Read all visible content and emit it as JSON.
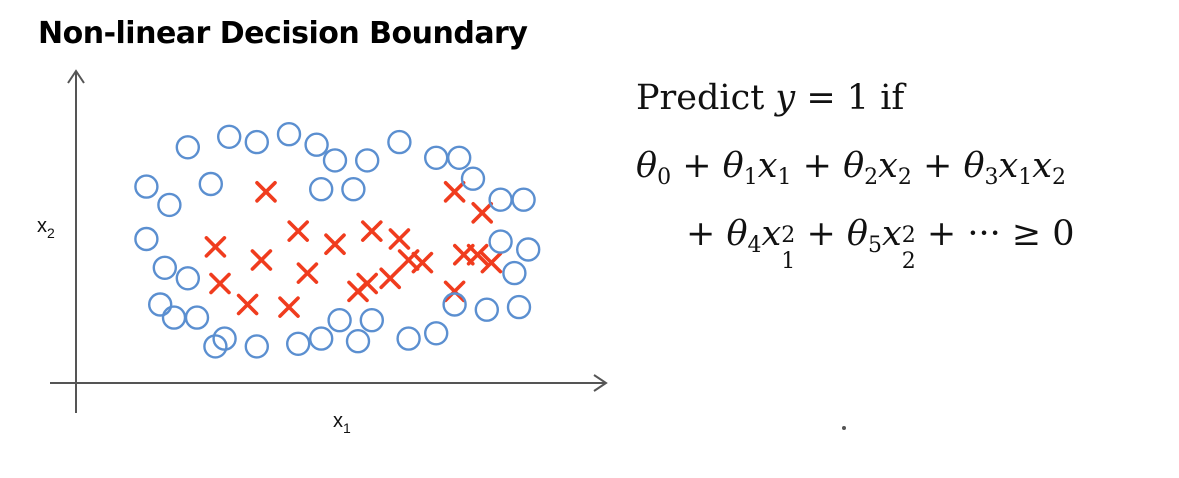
{
  "slide": {
    "title": "Non-linear Decision Boundary"
  },
  "plot": {
    "x_axis_label": "x",
    "x_axis_subscript": "1",
    "y_axis_label": "x",
    "y_axis_subscript": "2",
    "positive_marker_color": "#f03c1e",
    "negative_marker_color": "#5b8fd0",
    "positive_marker": "x-cross",
    "negative_marker": "circle"
  },
  "chart_data": {
    "type": "scatter",
    "xlabel": "x1",
    "ylabel": "x2",
    "grid": false,
    "legend": "none",
    "xlim": [
      0,
      100
    ],
    "ylim": [
      0,
      100
    ],
    "series": [
      {
        "marker": "x",
        "color": "#f03c1e",
        "points": [
          [
            35,
            68
          ],
          [
            24,
            47
          ],
          [
            34,
            42
          ],
          [
            42,
            53
          ],
          [
            50,
            48
          ],
          [
            58,
            53
          ],
          [
            66,
            42
          ],
          [
            62,
            35
          ],
          [
            76,
            68
          ],
          [
            82,
            60
          ],
          [
            78,
            44
          ],
          [
            84,
            41
          ],
          [
            25,
            33
          ],
          [
            44,
            37
          ],
          [
            31,
            25
          ],
          [
            40,
            24
          ],
          [
            57,
            33
          ],
          [
            69,
            41
          ],
          [
            76,
            30
          ],
          [
            81,
            44
          ],
          [
            64,
            50
          ],
          [
            55,
            30
          ]
        ]
      },
      {
        "marker": "o",
        "color": "#5b8fd0",
        "points": [
          [
            18,
            85
          ],
          [
            27,
            89
          ],
          [
            33,
            87
          ],
          [
            40,
            90
          ],
          [
            46,
            86
          ],
          [
            50,
            80
          ],
          [
            57,
            80
          ],
          [
            64,
            87
          ],
          [
            72,
            81
          ],
          [
            77,
            81
          ],
          [
            9,
            70
          ],
          [
            14,
            63
          ],
          [
            23,
            71
          ],
          [
            47,
            69
          ],
          [
            54,
            69
          ],
          [
            80,
            73
          ],
          [
            86,
            65
          ],
          [
            91,
            65
          ],
          [
            9,
            50
          ],
          [
            13,
            39
          ],
          [
            18,
            35
          ],
          [
            86,
            49
          ],
          [
            92,
            46
          ],
          [
            89,
            37
          ],
          [
            12,
            25
          ],
          [
            15,
            20
          ],
          [
            20,
            20
          ],
          [
            76,
            25
          ],
          [
            83,
            23
          ],
          [
            90,
            24
          ],
          [
            24,
            9
          ],
          [
            26,
            12
          ],
          [
            33,
            9
          ],
          [
            42,
            10
          ],
          [
            47,
            12
          ],
          [
            51,
            19
          ],
          [
            58,
            19
          ],
          [
            55,
            11
          ],
          [
            66,
            12
          ],
          [
            72,
            14
          ]
        ]
      }
    ]
  },
  "rule": {
    "line1_word": "Predict",
    "line1_var": "y",
    "line1_rel": "= 1",
    "line1_end": "if",
    "line2": [
      {
        "base": "θ",
        "sub": "0"
      },
      {
        "op": "+"
      },
      {
        "base": "θ",
        "sub": "1"
      },
      {
        "base": "x",
        "sub": "1"
      },
      {
        "op": "+"
      },
      {
        "base": "θ",
        "sub": "2"
      },
      {
        "base": "x",
        "sub": "2"
      },
      {
        "op": "+"
      },
      {
        "base": "θ",
        "sub": "3"
      },
      {
        "base": "x",
        "sub": "1"
      },
      {
        "base": "x",
        "sub": "2"
      }
    ],
    "line3_plus": "+",
    "theta4": "θ",
    "theta4_sub": "4",
    "x1sq_base": "x",
    "x1sq_sub": "1",
    "x1sq_sup": "2",
    "line3_plus2": "+",
    "theta5": "θ",
    "theta5_sub": "5",
    "x2sq_base": "x",
    "x2sq_sub": "2",
    "x2sq_sup": "2",
    "line3_tail": "+ ··· ≥ 0"
  }
}
